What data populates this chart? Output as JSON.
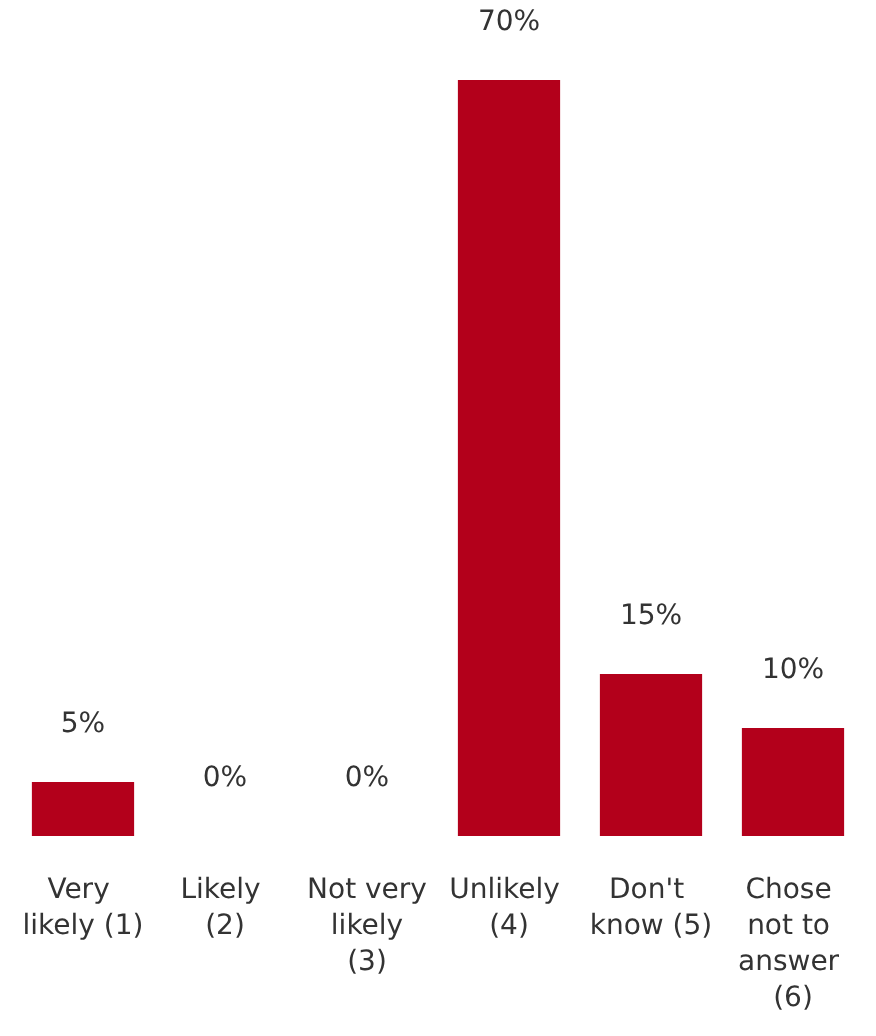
{
  "chart_data": {
    "type": "bar",
    "categories": [
      "Very likely (1)",
      "Likely (2)",
      "Not very likely (3)",
      "Unlikely (4)",
      "Don't know (5)",
      "Chose not to answer (6)"
    ],
    "values": [
      5,
      0,
      0,
      70,
      15,
      10
    ],
    "value_labels": [
      "5%",
      "0%",
      "0%",
      "70%",
      "15%",
      "10%"
    ],
    "color": "#b3001b"
  }
}
